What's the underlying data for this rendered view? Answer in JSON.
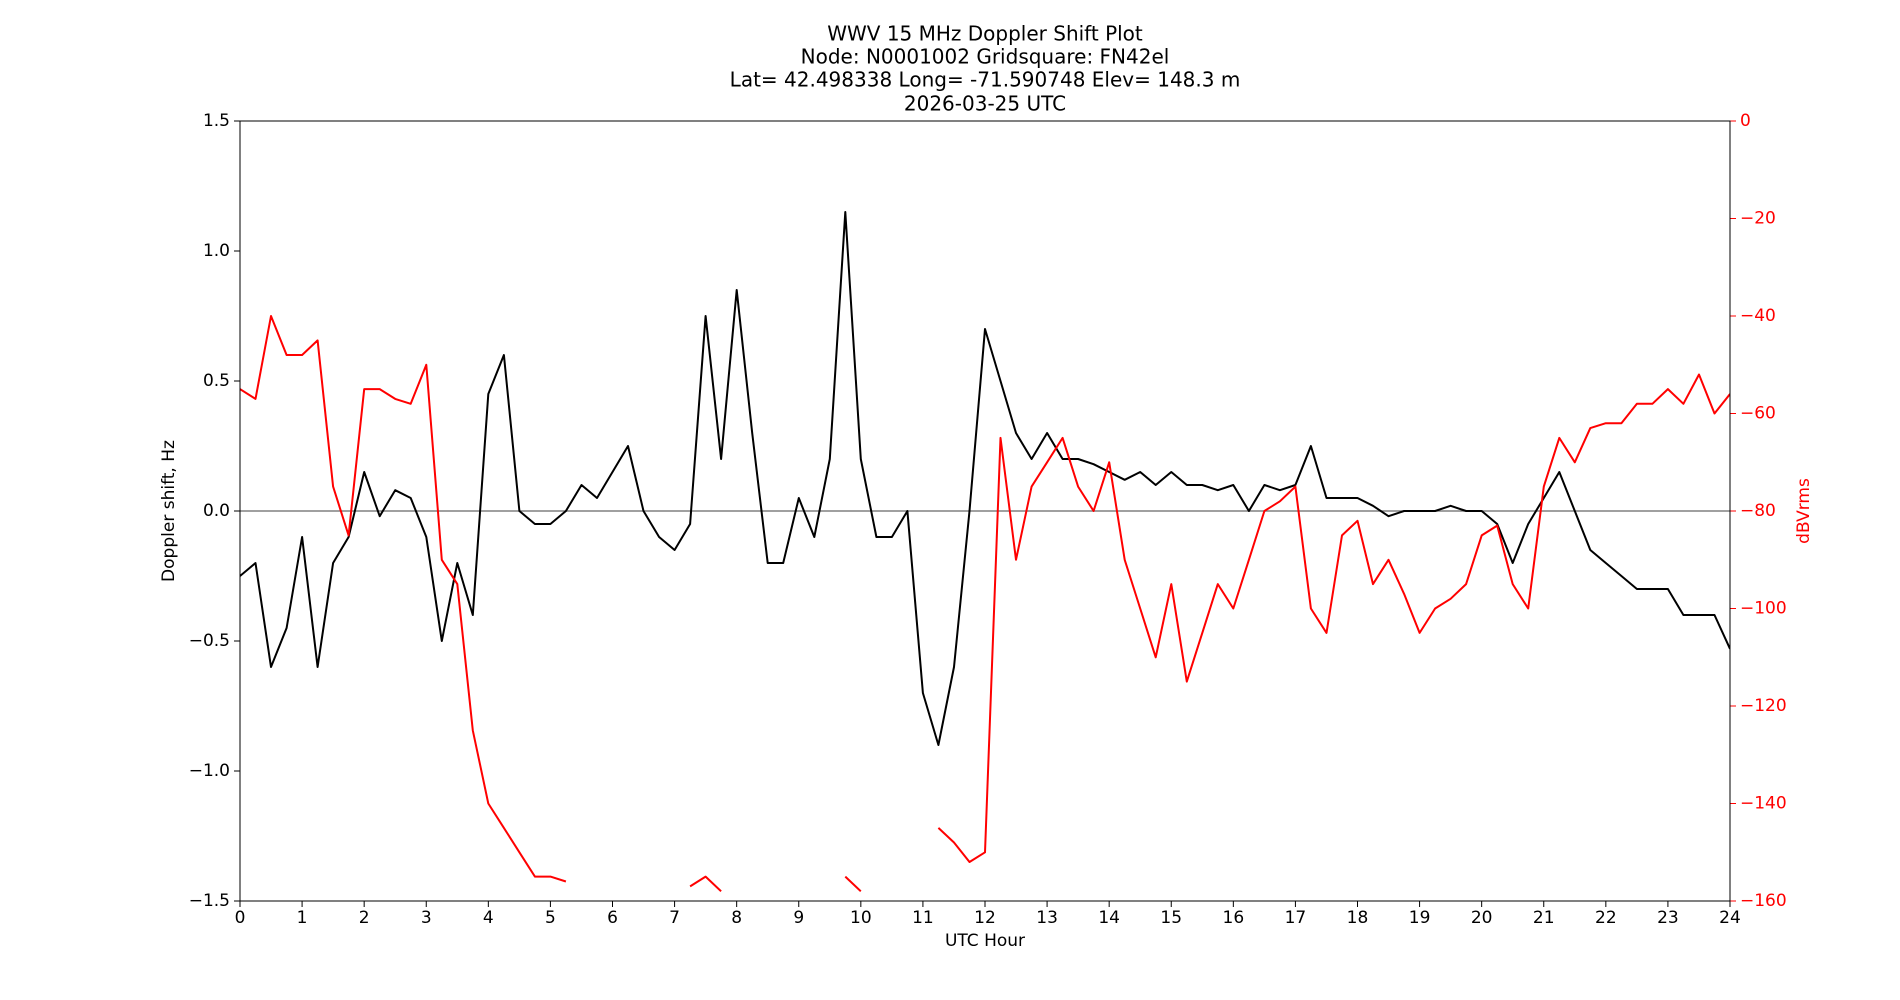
{
  "chart_data": {
    "type": "line",
    "title_lines": [
      "WWV 15 MHz Doppler Shift Plot",
      "Node:  N0001002     Gridsquare:  FN42el",
      "Lat= 42.498338    Long= -71.590748    Elev= 148.3 m",
      "2026-03-25  UTC"
    ],
    "xlabel": "UTC Hour",
    "ylabel": "Doppler shift, Hz",
    "y2label": "dBVrms",
    "xlim": [
      0,
      24
    ],
    "xticks": [
      0,
      1,
      2,
      3,
      4,
      5,
      6,
      7,
      8,
      9,
      10,
      11,
      12,
      13,
      14,
      15,
      16,
      17,
      18,
      19,
      20,
      21,
      22,
      23,
      24
    ],
    "ylim": [
      -1.5,
      1.5
    ],
    "yticks": [
      {
        "value": -1.5,
        "label": "−1.5"
      },
      {
        "value": -1.0,
        "label": "−1.0"
      },
      {
        "value": -0.5,
        "label": "−0.5"
      },
      {
        "value": 0,
        "label": "0.0"
      },
      0.5,
      {
        "value": 1.0,
        "label": "1.0"
      },
      1.5
    ],
    "y2lim": [
      -160,
      0
    ],
    "y2ticks": [
      {
        "value": -160,
        "label": "−160"
      },
      {
        "value": -140,
        "label": "−140"
      },
      {
        "value": -120,
        "label": "−120"
      },
      {
        "value": -100,
        "label": "−100"
      },
      {
        "value": -80,
        "label": "−80"
      },
      {
        "value": -60,
        "label": "−60"
      },
      {
        "value": -40,
        "label": "−40"
      },
      {
        "value": -20,
        "label": "−20"
      },
      0
    ],
    "reference_line": 0,
    "reference_color": "#808080",
    "x": [
      0,
      0.25,
      0.5,
      0.75,
      1,
      1.25,
      1.5,
      1.75,
      2,
      2.25,
      2.5,
      2.75,
      3,
      3.25,
      3.5,
      3.75,
      4,
      4.25,
      4.5,
      4.75,
      5,
      5.25,
      5.5,
      5.75,
      6,
      6.25,
      6.5,
      6.75,
      7,
      7.25,
      7.5,
      7.75,
      8,
      8.25,
      8.5,
      8.75,
      9,
      9.25,
      9.5,
      9.75,
      10,
      10.25,
      10.5,
      10.75,
      11,
      11.25,
      11.5,
      11.75,
      12,
      12.25,
      12.5,
      12.75,
      13,
      13.25,
      13.5,
      13.75,
      14,
      14.25,
      14.5,
      14.75,
      15,
      15.25,
      15.5,
      15.75,
      16,
      16.25,
      16.5,
      16.75,
      17,
      17.25,
      17.5,
      17.75,
      18,
      18.25,
      18.5,
      18.75,
      19,
      19.25,
      19.5,
      19.75,
      20,
      20.25,
      20.5,
      20.75,
      21,
      21.25,
      21.5,
      21.75,
      22,
      22.25,
      22.5,
      22.75,
      23,
      23.25,
      23.5,
      23.75,
      24
    ],
    "series": [
      {
        "color": "#000000",
        "values": [
          -0.25,
          -0.2,
          -0.6,
          -0.45,
          -0.1,
          -0.6,
          -0.2,
          -0.1,
          0.15,
          -0.02,
          0.08,
          0.05,
          -0.1,
          -0.5,
          -0.2,
          -0.4,
          0.45,
          0.6,
          0.0,
          -0.05,
          -0.05,
          0.0,
          0.1,
          0.05,
          0.15,
          0.25,
          0.0,
          -0.1,
          -0.15,
          -0.05,
          0.75,
          0.2,
          0.85,
          0.3,
          -0.2,
          -0.2,
          0.05,
          -0.1,
          0.2,
          1.15,
          0.2,
          -0.1,
          -0.1,
          0.0,
          -0.7,
          -0.9,
          -0.6,
          0.0,
          0.7,
          0.5,
          0.3,
          0.2,
          0.3,
          0.2,
          0.2,
          0.18,
          0.15,
          0.12,
          0.15,
          0.1,
          0.15,
          0.1,
          0.1,
          0.08,
          0.1,
          0.0,
          0.1,
          0.08,
          0.1,
          0.25,
          0.05,
          0.05,
          0.05,
          0.02,
          -0.02,
          0.0,
          0.0,
          0.0,
          0.02,
          0.0,
          0.0,
          -0.05,
          -0.2,
          -0.05,
          0.05,
          0.15,
          0.0,
          -0.15,
          -0.2,
          -0.25,
          -0.3,
          -0.3,
          -0.3,
          -0.4,
          -0.4,
          -0.4,
          -0.53
        ]
      },
      {
        "color": "#ff0000",
        "axis": "y2",
        "values": [
          -55,
          -57,
          -40,
          -48,
          -48,
          -45,
          -75,
          -85,
          -55,
          -55,
          -57,
          -58,
          -50,
          -90,
          -95,
          -125,
          -140,
          -145,
          -150,
          -155,
          -155,
          -156,
          null,
          null,
          null,
          null,
          null,
          null,
          null,
          -157,
          -155,
          -158,
          null,
          null,
          null,
          null,
          null,
          null,
          null,
          -155,
          -158,
          null,
          null,
          null,
          null,
          -145,
          -148,
          -152,
          -150,
          -65,
          -90,
          -75,
          -70,
          -65,
          -75,
          -80,
          -70,
          -90,
          -100,
          -110,
          -95,
          -115,
          -105,
          -95,
          -100,
          -90,
          -80,
          -78,
          -75,
          -100,
          -105,
          -85,
          -82,
          -95,
          -90,
          -97,
          -105,
          -100,
          -98,
          -95,
          -85,
          -83,
          -95,
          -100,
          -75,
          -65,
          -70,
          -63,
          -62,
          -62,
          -58,
          -58,
          -55,
          -58,
          -52,
          -60,
          -56
        ]
      }
    ]
  }
}
